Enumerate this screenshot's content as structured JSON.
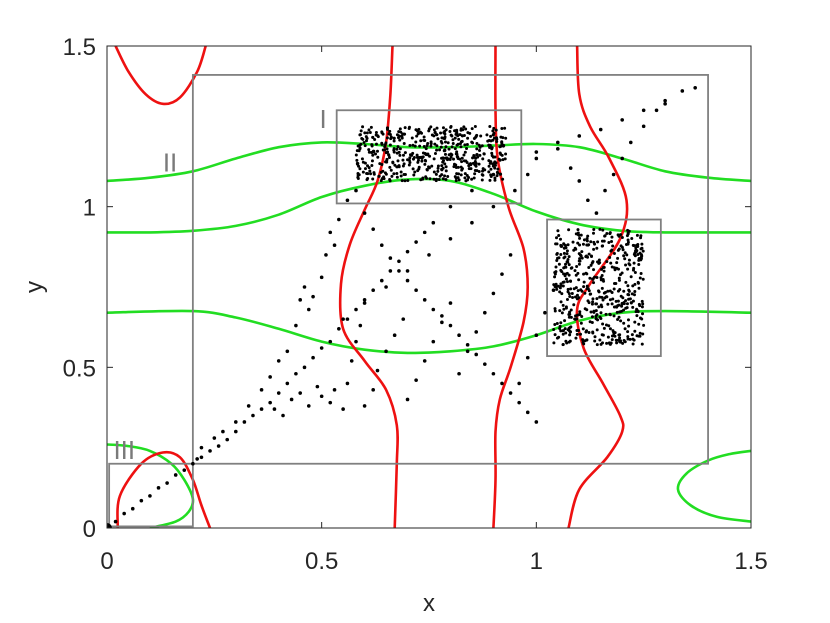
{
  "chart_data": {
    "type": "scatter",
    "title": "",
    "xlabel": "x",
    "ylabel": "y",
    "xlim": [
      0,
      1.5
    ],
    "ylim": [
      0,
      1.5
    ],
    "xticks": [
      {
        "value": 0,
        "label": "0"
      },
      {
        "value": 0.5,
        "label": "0.5"
      },
      {
        "value": 1,
        "label": "1"
      },
      {
        "value": 1.5,
        "label": "1.5"
      }
    ],
    "yticks": [
      {
        "value": 0,
        "label": "0"
      },
      {
        "value": 0.5,
        "label": "0.5"
      },
      {
        "value": 1,
        "label": "1"
      },
      {
        "value": 1.5,
        "label": "1.5"
      }
    ],
    "grid": false,
    "box": true,
    "colors": {
      "axes": "#262626",
      "red_curves": "#ee1111",
      "green_curves": "#22dd22",
      "region_boxes": "#808080",
      "points": "#000000"
    },
    "regions": [
      {
        "label": "I",
        "x0": 0.535,
        "y0": 1.01,
        "x1": 0.965,
        "y1": 1.3,
        "label_x": 0.495,
        "label_y": 1.245
      },
      {
        "label": "II",
        "x0": 0.2,
        "y0": 0.2,
        "x1": 1.4,
        "y1": 1.41,
        "label_x": 0.13,
        "label_y": 1.11
      },
      {
        "label": "III",
        "x0": 0.005,
        "y0": 0.005,
        "x1": 0.2,
        "y1": 0.2,
        "label_x": 0.015,
        "label_y": 0.215
      },
      {
        "label": "",
        "x0": 1.025,
        "y0": 0.535,
        "x1": 1.29,
        "y1": 0.96,
        "label_x": null,
        "label_y": null
      }
    ],
    "red_curves": [
      {
        "points": [
          [
            0.02,
            1.5
          ],
          [
            0.05,
            1.42
          ],
          [
            0.09,
            1.35
          ],
          [
            0.13,
            1.32
          ],
          [
            0.17,
            1.34
          ],
          [
            0.21,
            1.42
          ],
          [
            0.23,
            1.5
          ]
        ]
      },
      {
        "points": [
          [
            0.665,
            1.5
          ],
          [
            0.66,
            1.35
          ],
          [
            0.65,
            1.2
          ],
          [
            0.63,
            1.08
          ],
          [
            0.6,
            0.99
          ],
          [
            0.565,
            0.88
          ],
          [
            0.545,
            0.76
          ],
          [
            0.55,
            0.62
          ],
          [
            0.6,
            0.52
          ],
          [
            0.65,
            0.43
          ],
          [
            0.675,
            0.32
          ],
          [
            0.675,
            0.2
          ],
          [
            0.67,
            0
          ]
        ]
      },
      {
        "points": [
          [
            0.905,
            1.5
          ],
          [
            0.905,
            1.3
          ],
          [
            0.91,
            1.15
          ],
          [
            0.935,
            1.0
          ],
          [
            0.97,
            0.87
          ],
          [
            0.98,
            0.75
          ],
          [
            0.97,
            0.64
          ],
          [
            0.94,
            0.5
          ],
          [
            0.915,
            0.4
          ],
          [
            0.905,
            0.3
          ],
          [
            0.905,
            0.15
          ],
          [
            0.9,
            0
          ]
        ]
      },
      {
        "points": [
          [
            1.095,
            1.5
          ],
          [
            1.1,
            1.35
          ],
          [
            1.125,
            1.25
          ],
          [
            1.17,
            1.15
          ],
          [
            1.21,
            1.02
          ],
          [
            1.195,
            0.9
          ],
          [
            1.125,
            0.76
          ],
          [
            1.095,
            0.68
          ],
          [
            1.11,
            0.56
          ],
          [
            1.155,
            0.45
          ],
          [
            1.195,
            0.35
          ],
          [
            1.2,
            0.3
          ],
          [
            1.165,
            0.22
          ],
          [
            1.1,
            0.12
          ],
          [
            1.075,
            0
          ]
        ]
      },
      {
        "points": [
          [
            0.025,
            0.0
          ],
          [
            0.03,
            0.1
          ],
          [
            0.08,
            0.2
          ],
          [
            0.13,
            0.235
          ],
          [
            0.17,
            0.22
          ],
          [
            0.2,
            0.15
          ],
          [
            0.22,
            0.07
          ],
          [
            0.24,
            0.0
          ]
        ]
      }
    ],
    "green_curves": [
      {
        "points": [
          [
            0.0,
            1.08
          ],
          [
            0.1,
            1.09
          ],
          [
            0.2,
            1.11
          ],
          [
            0.3,
            1.15
          ],
          [
            0.4,
            1.185
          ],
          [
            0.5,
            1.2
          ],
          [
            0.6,
            1.195
          ],
          [
            0.7,
            1.185
          ],
          [
            0.8,
            1.185
          ],
          [
            0.9,
            1.19
          ],
          [
            1.0,
            1.195
          ],
          [
            1.1,
            1.185
          ],
          [
            1.2,
            1.15
          ],
          [
            1.3,
            1.11
          ],
          [
            1.4,
            1.09
          ],
          [
            1.5,
            1.08
          ]
        ]
      },
      {
        "points": [
          [
            0.0,
            0.92
          ],
          [
            0.1,
            0.92
          ],
          [
            0.2,
            0.925
          ],
          [
            0.3,
            0.94
          ],
          [
            0.4,
            0.975
          ],
          [
            0.5,
            1.03
          ],
          [
            0.6,
            1.065
          ],
          [
            0.7,
            1.085
          ],
          [
            0.8,
            1.08
          ],
          [
            0.9,
            1.04
          ],
          [
            1.0,
            0.985
          ],
          [
            1.1,
            0.945
          ],
          [
            1.2,
            0.925
          ],
          [
            1.3,
            0.92
          ],
          [
            1.5,
            0.92
          ]
        ]
      },
      {
        "points": [
          [
            0.0,
            0.67
          ],
          [
            0.2,
            0.675
          ],
          [
            0.3,
            0.655
          ],
          [
            0.4,
            0.62
          ],
          [
            0.5,
            0.58
          ],
          [
            0.6,
            0.555
          ],
          [
            0.7,
            0.545
          ],
          [
            0.8,
            0.55
          ],
          [
            0.9,
            0.565
          ],
          [
            1.0,
            0.6
          ],
          [
            1.1,
            0.645
          ],
          [
            1.2,
            0.67
          ],
          [
            1.3,
            0.675
          ],
          [
            1.5,
            0.67
          ]
        ]
      },
      {
        "points": [
          [
            0.0,
            0.26
          ],
          [
            0.05,
            0.255
          ],
          [
            0.1,
            0.24
          ],
          [
            0.15,
            0.2
          ],
          [
            0.18,
            0.15
          ],
          [
            0.2,
            0.09
          ],
          [
            0.19,
            0.05
          ],
          [
            0.16,
            0.02
          ],
          [
            0.1,
            0.0
          ]
        ]
      },
      {
        "points": [
          [
            1.5,
            0.24
          ],
          [
            1.45,
            0.23
          ],
          [
            1.4,
            0.21
          ],
          [
            1.35,
            0.17
          ],
          [
            1.33,
            0.12
          ],
          [
            1.36,
            0.07
          ],
          [
            1.42,
            0.035
          ],
          [
            1.5,
            0.02
          ]
        ]
      }
    ],
    "series": [
      {
        "name": "",
        "marker": "dot",
        "origin_point": [
          0.0,
          0.0
        ],
        "dense_clusters": [
          {
            "x_range": [
              0.58,
              0.93
            ],
            "y_range": [
              1.08,
              1.25
            ]
          },
          {
            "x_range": [
              1.04,
              1.25
            ],
            "y_range": [
              0.57,
              0.93
            ]
          }
        ],
        "diagonal_points": [
          [
            0.0,
            0.0
          ],
          [
            0.02,
            0.02
          ],
          [
            0.04,
            0.045
          ],
          [
            0.06,
            0.06
          ],
          [
            0.08,
            0.085
          ],
          [
            0.1,
            0.1
          ],
          [
            0.12,
            0.125
          ],
          [
            0.14,
            0.14
          ],
          [
            0.16,
            0.165
          ],
          [
            0.18,
            0.18
          ],
          [
            0.2,
            0.2
          ],
          [
            0.21,
            0.215
          ],
          [
            0.22,
            0.22
          ],
          [
            0.24,
            0.24
          ],
          [
            0.26,
            0.255
          ],
          [
            0.28,
            0.275
          ],
          [
            0.3,
            0.3
          ],
          [
            0.32,
            0.33
          ],
          [
            0.34,
            0.35
          ],
          [
            0.36,
            0.37
          ],
          [
            0.38,
            0.39
          ],
          [
            0.4,
            0.42
          ],
          [
            0.42,
            0.45
          ],
          [
            0.44,
            0.48
          ],
          [
            0.46,
            0.5
          ],
          [
            0.48,
            0.53
          ],
          [
            0.5,
            0.56
          ],
          [
            0.52,
            0.58
          ],
          [
            0.54,
            0.62
          ],
          [
            0.56,
            0.65
          ],
          [
            0.58,
            0.68
          ],
          [
            0.6,
            0.71
          ],
          [
            0.62,
            0.74
          ],
          [
            0.64,
            0.77
          ],
          [
            0.66,
            0.8
          ],
          [
            0.68,
            0.83
          ],
          [
            0.7,
            0.86
          ],
          [
            0.72,
            0.89
          ],
          [
            0.74,
            0.92
          ],
          [
            0.76,
            0.95
          ],
          [
            0.8,
            1.0
          ],
          [
            0.85,
            1.05
          ],
          [
            0.9,
            1.1
          ],
          [
            1.0,
            1.17
          ],
          [
            1.05,
            1.2
          ],
          [
            1.1,
            1.22
          ],
          [
            1.15,
            1.24
          ],
          [
            1.2,
            1.27
          ],
          [
            1.25,
            1.3
          ],
          [
            1.3,
            1.33
          ],
          [
            1.34,
            1.36
          ],
          [
            1.37,
            1.37
          ]
        ],
        "scattered_points": [
          [
            0.22,
            0.25
          ],
          [
            0.25,
            0.28
          ],
          [
            0.27,
            0.3
          ],
          [
            0.3,
            0.33
          ],
          [
            0.33,
            0.38
          ],
          [
            0.36,
            0.43
          ],
          [
            0.38,
            0.47
          ],
          [
            0.4,
            0.52
          ],
          [
            0.42,
            0.55
          ],
          [
            0.44,
            0.63
          ],
          [
            0.45,
            0.71
          ],
          [
            0.46,
            0.75
          ],
          [
            0.49,
            0.44
          ],
          [
            0.5,
            0.41
          ],
          [
            0.52,
            0.39
          ],
          [
            0.53,
            0.43
          ],
          [
            0.55,
            0.37
          ],
          [
            0.56,
            0.45
          ],
          [
            0.57,
            0.52
          ],
          [
            0.58,
            0.58
          ],
          [
            0.59,
            0.63
          ],
          [
            0.6,
            0.38
          ],
          [
            0.62,
            0.43
          ],
          [
            0.63,
            0.49
          ],
          [
            0.65,
            0.55
          ],
          [
            0.67,
            0.6
          ],
          [
            0.69,
            0.65
          ],
          [
            0.7,
            0.4
          ],
          [
            0.72,
            0.46
          ],
          [
            0.74,
            0.52
          ],
          [
            0.76,
            0.58
          ],
          [
            0.78,
            0.64
          ],
          [
            0.8,
            0.7
          ],
          [
            0.82,
            0.48
          ],
          [
            0.84,
            0.55
          ],
          [
            0.86,
            0.61
          ],
          [
            0.88,
            0.67
          ],
          [
            0.9,
            0.73
          ],
          [
            0.92,
            0.79
          ],
          [
            0.94,
            0.85
          ],
          [
            0.96,
            0.45
          ],
          [
            0.98,
            0.53
          ],
          [
            1.0,
            0.6
          ],
          [
            1.02,
            0.67
          ],
          [
            1.04,
            0.74
          ],
          [
            0.52,
            0.92
          ],
          [
            0.54,
            0.96
          ],
          [
            0.56,
            1.02
          ],
          [
            0.58,
            1.05
          ],
          [
            0.6,
            0.98
          ],
          [
            0.62,
            0.93
          ],
          [
            0.64,
            0.88
          ],
          [
            0.66,
            0.84
          ],
          [
            0.68,
            0.8
          ],
          [
            0.7,
            0.77
          ],
          [
            0.72,
            0.74
          ],
          [
            0.74,
            0.71
          ],
          [
            0.76,
            0.68
          ],
          [
            0.78,
            0.66
          ],
          [
            0.8,
            0.63
          ],
          [
            0.82,
            0.6
          ],
          [
            0.84,
            0.57
          ],
          [
            0.86,
            0.54
          ],
          [
            0.88,
            0.51
          ],
          [
            0.9,
            0.48
          ],
          [
            0.92,
            0.45
          ],
          [
            0.94,
            0.42
          ],
          [
            0.96,
            0.39
          ],
          [
            0.98,
            0.36
          ],
          [
            1.0,
            0.33
          ],
          [
            0.55,
            0.65
          ],
          [
            0.6,
            0.7
          ],
          [
            0.65,
            0.75
          ],
          [
            0.7,
            0.8
          ],
          [
            0.75,
            0.85
          ],
          [
            0.8,
            0.9
          ],
          [
            0.85,
            0.95
          ],
          [
            0.9,
            1.0
          ],
          [
            0.95,
            1.05
          ],
          [
            0.98,
            1.1
          ],
          [
            1.0,
            1.15
          ],
          [
            1.05,
            1.18
          ],
          [
            1.08,
            1.12
          ],
          [
            1.1,
            1.08
          ],
          [
            1.12,
            1.02
          ],
          [
            1.14,
            0.98
          ],
          [
            1.16,
            1.05
          ],
          [
            1.18,
            1.1
          ],
          [
            1.2,
            1.15
          ],
          [
            1.22,
            1.2
          ],
          [
            1.25,
            1.25
          ],
          [
            1.28,
            1.3
          ],
          [
            1.3,
            1.32
          ],
          [
            0.47,
            0.68
          ],
          [
            0.48,
            0.72
          ],
          [
            0.5,
            0.78
          ],
          [
            0.51,
            0.85
          ],
          [
            0.53,
            0.88
          ],
          [
            0.43,
            0.4
          ],
          [
            0.45,
            0.42
          ],
          [
            0.47,
            0.38
          ],
          [
            0.41,
            0.35
          ],
          [
            0.39,
            0.37
          ]
        ]
      }
    ]
  }
}
